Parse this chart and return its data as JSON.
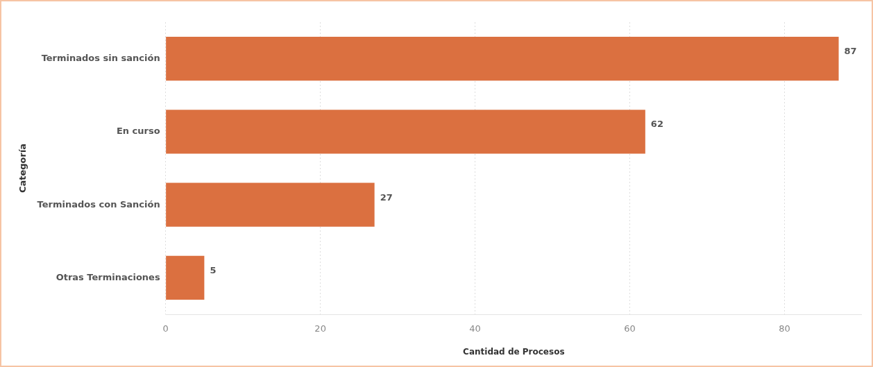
{
  "chart_data": {
    "type": "bar",
    "orientation": "horizontal",
    "xlabel": "Cantidad de Procesos",
    "ylabel": "Categoría",
    "categories": [
      "Terminados sin sanción",
      "En curso",
      "Terminados con Sanción",
      "Otras Terminaciones"
    ],
    "values": [
      87,
      62,
      27,
      5
    ],
    "color": "#db7040",
    "data_labels": true,
    "grid": "x",
    "legend": false,
    "xlim": [
      0,
      90
    ],
    "xticks": [
      0,
      20,
      40,
      60,
      80
    ]
  }
}
